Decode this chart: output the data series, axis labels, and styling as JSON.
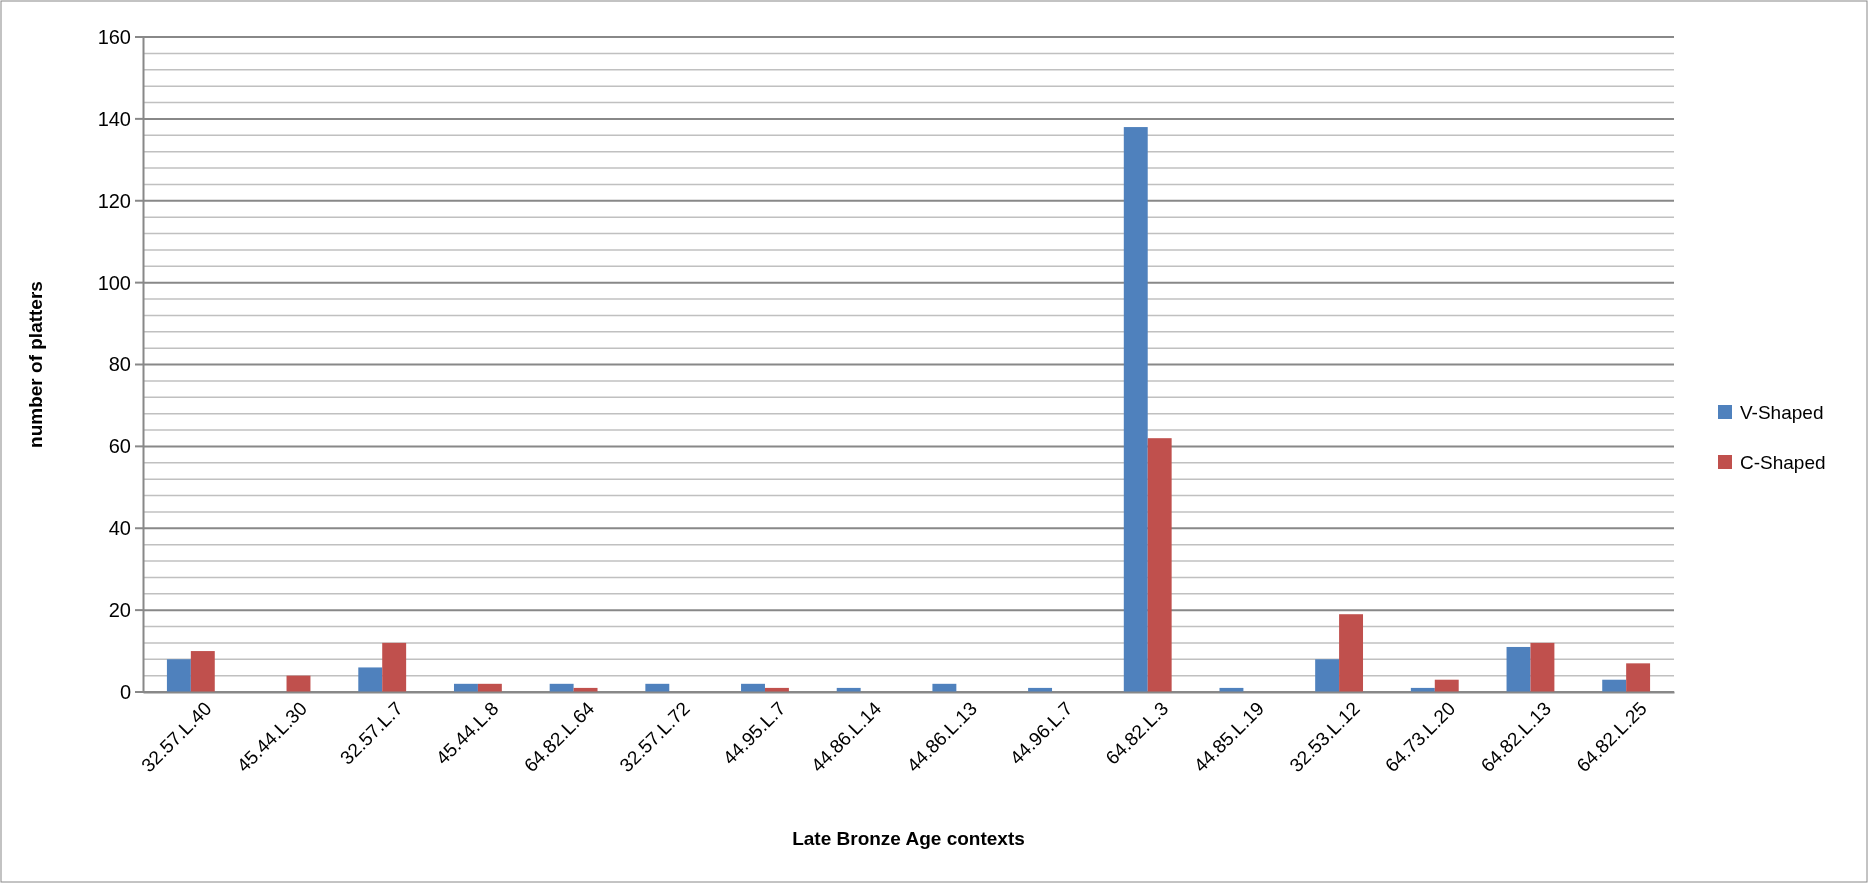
{
  "chart_data": {
    "type": "bar",
    "xlabel": "Late Bronze Age contexts",
    "ylabel": "number of platters",
    "categories": [
      "32.57.L.40",
      "45.44.L.30",
      "32.57.L.7",
      "45.44.L.8",
      "64.82.L.64",
      "32.57.L.72",
      "44.95.L.7",
      "44.86.L.14",
      "44.86.L.13",
      "44.96.L.7",
      "64.82.L.3",
      "44.85.L.19",
      "32.53.L.12",
      "64.73.L.20",
      "64.82.L.13",
      "64.82.L.25"
    ],
    "series": [
      {
        "name": "V-Shaped",
        "color": "#4f81bd",
        "values": [
          8,
          0,
          6,
          2,
          2,
          2,
          2,
          1,
          2,
          1,
          138,
          1,
          8,
          1,
          11,
          3
        ]
      },
      {
        "name": "C-Shaped",
        "color": "#c0504d",
        "values": [
          10,
          4,
          12,
          2,
          1,
          0,
          1,
          0,
          0,
          0,
          62,
          0,
          19,
          3,
          12,
          7
        ]
      }
    ],
    "ylim": [
      0,
      160
    ],
    "yticks": [
      0,
      {
        "value": 4,
        "label": null
      },
      {
        "value": 8,
        "label": null
      },
      {
        "value": 12,
        "label": null
      },
      {
        "value": 16,
        "label": null
      },
      20,
      {
        "value": 24,
        "label": null
      },
      {
        "value": 28,
        "label": null
      },
      {
        "value": 32,
        "label": null
      },
      {
        "value": 36,
        "label": null
      },
      40,
      {
        "value": 44,
        "label": null
      },
      {
        "value": 48,
        "label": null
      },
      {
        "value": 52,
        "label": null
      },
      {
        "value": 56,
        "label": null
      },
      60,
      {
        "value": 64,
        "label": null
      },
      {
        "value": 68,
        "label": null
      },
      {
        "value": 72,
        "label": null
      },
      {
        "value": 76,
        "label": null
      },
      80,
      {
        "value": 84,
        "label": null
      },
      {
        "value": 88,
        "label": null
      },
      {
        "value": 92,
        "label": null
      },
      {
        "value": 96,
        "label": null
      },
      100,
      {
        "value": 104,
        "label": null
      },
      {
        "value": 108,
        "label": null
      },
      {
        "value": 112,
        "label": null
      },
      {
        "value": 116,
        "label": null
      },
      120,
      {
        "value": 124,
        "label": null
      },
      {
        "value": 128,
        "label": null
      },
      {
        "value": 132,
        "label": null
      },
      {
        "value": 136,
        "label": null
      },
      140,
      {
        "value": 144,
        "label": null
      },
      {
        "value": 148,
        "label": null
      },
      {
        "value": 152,
        "label": null
      },
      {
        "value": 156,
        "label": null
      },
      160
    ],
    "grid": "y",
    "legend": "right"
  }
}
